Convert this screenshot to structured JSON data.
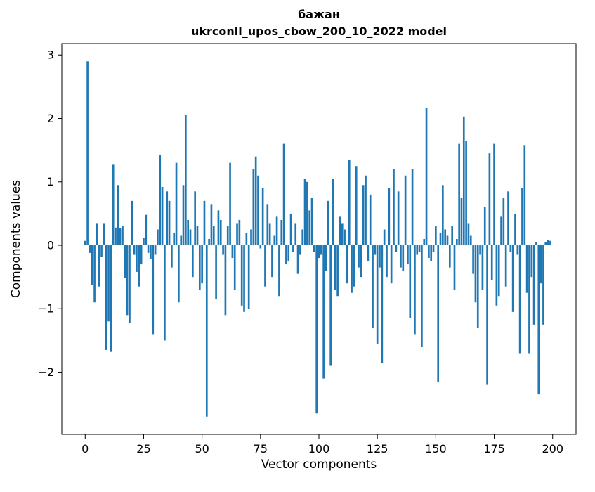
{
  "chart_data": {
    "type": "bar",
    "title_lines": [
      "бажан",
      "ukrconll_upos_cbow_200_10_2022 model"
    ],
    "xlabel": "Vector components",
    "ylabel": "Components values",
    "bar_color": "#1f77b4",
    "axis_color": "#000000",
    "background_color": "#ffffff",
    "xlim": [
      -10,
      210
    ],
    "ylim": [
      -2.98,
      3.18
    ],
    "xticks": [
      0,
      25,
      50,
      75,
      100,
      125,
      150,
      175,
      200
    ],
    "yticks": [
      -2,
      -1,
      0,
      1,
      2,
      3
    ],
    "bar_width": 0.8,
    "x_start": 0,
    "values": [
      0.07,
      2.9,
      -0.12,
      -0.62,
      -0.9,
      0.35,
      -0.65,
      -0.18,
      0.35,
      -1.65,
      -1.2,
      -1.68,
      1.27,
      0.28,
      0.95,
      0.27,
      0.3,
      -0.52,
      -1.1,
      -1.22,
      0.7,
      -0.15,
      -0.42,
      -0.65,
      -0.3,
      0.12,
      0.48,
      -0.12,
      -0.22,
      -1.4,
      -0.15,
      0.25,
      1.42,
      0.92,
      -1.5,
      0.85,
      0.7,
      -0.35,
      0.2,
      1.3,
      -0.9,
      0.15,
      0.95,
      2.05,
      0.4,
      0.25,
      -0.5,
      0.85,
      0.3,
      -0.7,
      -0.6,
      0.7,
      -2.7,
      0.1,
      0.65,
      0.3,
      -0.85,
      0.55,
      0.4,
      -0.15,
      -1.1,
      0.3,
      1.3,
      -0.2,
      -0.7,
      0.35,
      0.4,
      -0.95,
      -1.05,
      0.2,
      -1.0,
      0.25,
      1.2,
      1.4,
      1.1,
      -0.05,
      0.9,
      -0.65,
      0.65,
      0.35,
      -0.5,
      0.15,
      0.45,
      -0.8,
      0.4,
      1.6,
      -0.3,
      -0.25,
      0.5,
      -0.1,
      0.35,
      -0.45,
      -0.15,
      0.25,
      1.05,
      1.0,
      0.55,
      0.75,
      -0.1,
      -2.65,
      -0.2,
      -0.15,
      -2.1,
      -0.4,
      0.7,
      -1.9,
      1.05,
      -0.7,
      -0.8,
      0.45,
      0.35,
      0.25,
      -0.6,
      1.35,
      -0.75,
      -0.65,
      1.25,
      -0.35,
      -0.5,
      0.95,
      1.1,
      -0.25,
      0.8,
      -1.3,
      -0.15,
      -1.55,
      -0.35,
      -1.85,
      0.25,
      -0.5,
      0.9,
      -0.6,
      1.2,
      -0.1,
      0.85,
      -0.35,
      -0.4,
      1.1,
      -0.3,
      -1.15,
      1.2,
      -1.4,
      -0.15,
      -0.1,
      -1.6,
      0.1,
      2.17,
      -0.2,
      -0.25,
      -0.1,
      0.3,
      -2.15,
      0.2,
      0.95,
      0.25,
      0.15,
      -0.35,
      0.3,
      -0.7,
      0.1,
      1.6,
      0.75,
      2.03,
      1.65,
      0.35,
      0.15,
      -0.45,
      -0.9,
      -1.3,
      -0.15,
      -0.7,
      0.6,
      -2.2,
      1.45,
      -0.55,
      1.6,
      -0.95,
      -0.8,
      0.45,
      0.75,
      -0.65,
      0.85,
      -0.1,
      -1.05,
      0.5,
      -0.15,
      -1.7,
      0.9,
      1.57,
      -0.75,
      -1.7,
      -0.5,
      -1.25,
      0.05,
      -2.35,
      -0.6,
      -1.25,
      0.05,
      0.08,
      0.07
    ]
  }
}
